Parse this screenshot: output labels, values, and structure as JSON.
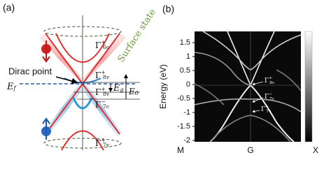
{
  "panel_a": {
    "label": "(a)",
    "surface_state": "Surface state",
    "dirac_point": "Dirac point",
    "ef": {
      "base": "E",
      "sub": "f"
    },
    "eg": {
      "base": "E",
      "sub": "g"
    },
    "e0": {
      "base": "E",
      "sub": "0"
    },
    "levels": [
      {
        "base": "Γ",
        "sub": "6c",
        "sup": "+"
      },
      {
        "base": "Γ",
        "sub": "8v",
        "sup": "+"
      },
      {
        "base": "Γ",
        "sub": "8v",
        "sup": "+"
      },
      {
        "base": "Γ",
        "sub": "7c",
        "sup": "−"
      },
      {
        "base": "Γ",
        "sub": "7v",
        "sup": "+"
      }
    ]
  },
  "chart_data": {
    "type": "bands",
    "label": "(b)",
    "y_label": "Energy (eV)",
    "categories": [
      "M",
      "G",
      "X"
    ],
    "ylim": [
      -2.05,
      1.9
    ],
    "yticks": [
      1.5,
      1,
      0.5,
      0,
      -0.5,
      -1,
      -1.5,
      -2
    ],
    "annotations": [
      {
        "base": "Γ",
        "sub": "8v",
        "sup": "+"
      },
      {
        "base": "Γ",
        "sub": "7c",
        "sup": "−"
      },
      {
        "base": "Γ",
        "sub": "7v",
        "sup": "+"
      }
    ]
  }
}
